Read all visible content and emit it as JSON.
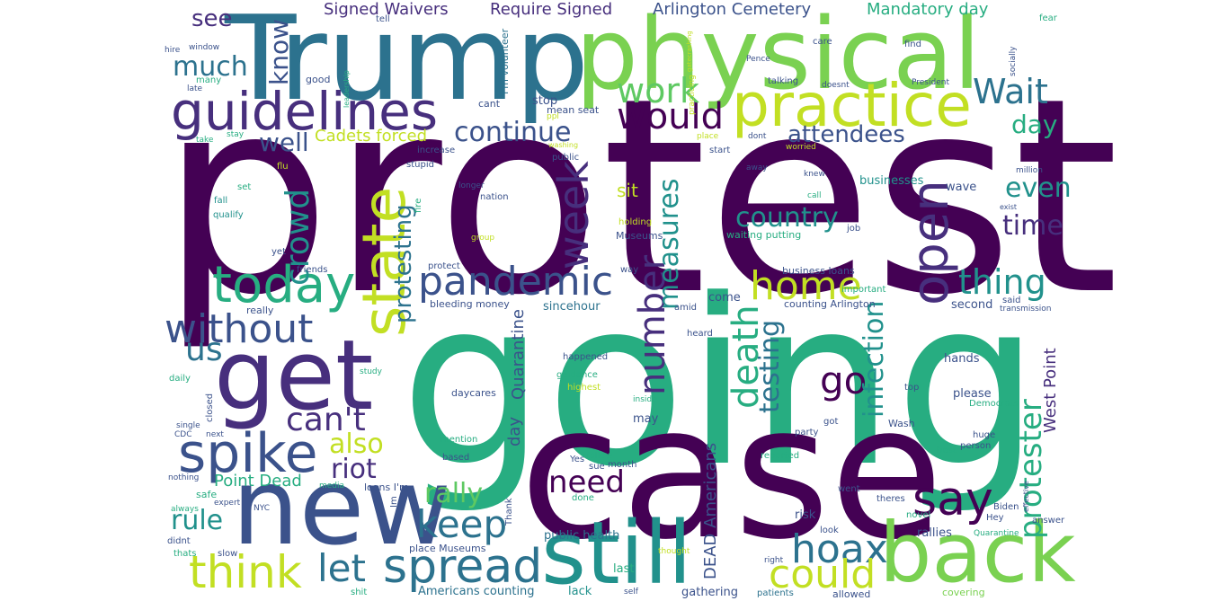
{
  "palette": {
    "dark_purple": "#440154",
    "indigo": "#472f7d",
    "slate_blue": "#3b528b",
    "steel_blue": "#2c728e",
    "teal": "#21918c",
    "sea_green": "#27ad81",
    "green": "#5ec962",
    "lime": "#7ad151",
    "yellow_green": "#c2df23",
    "yellow": "#fde725"
  },
  "words": {
    "protest": "protest",
    "going": "going",
    "case": "case",
    "trump": "Trump",
    "physical": "physical",
    "new": "new",
    "get": "get",
    "still": "still",
    "back": "back",
    "practice": "practice",
    "guidelines": "guidelines",
    "state": "state",
    "spread": "spread",
    "spike": "spike",
    "today": "today",
    "think": "think",
    "without": "without",
    "pandemic": "pandemic",
    "would": "would",
    "work": "work",
    "wait": "Wait",
    "week": "week",
    "open": "open",
    "say": "say",
    "hoax": "hoax",
    "could": "could",
    "let": "let",
    "keep": "keep",
    "home": "home",
    "thing": "thing",
    "number": "number",
    "measures": "measures",
    "death": "death",
    "go": "go",
    "protester": "protester",
    "cant": "can't",
    "crowd": "crowd",
    "infection": "infection",
    "us": "us",
    "rally": "rally",
    "need": "need",
    "riot": "riot",
    "testing": "testing",
    "continue": "continue",
    "country": "country",
    "much": "much",
    "know": "know",
    "time": "time",
    "even": "even",
    "rule": "rule",
    "also": "also",
    "well": "well",
    "attendees": "attendees",
    "protesting": "protesting",
    "day": "day",
    "see": "see",
    "mandatory_day": "Mandatory day",
    "arlington_cemetery": "Arlington Cemetery",
    "signed_waivers": "Signed Waivers",
    "require_signed": "Require Signed",
    "cadets_forced": "Cadets forced",
    "point_dead": "Point Dead",
    "west_point": "West Point",
    "quarantine_big": "Quarantine",
    "dead_americans": "DEAD Americans",
    "sit": "sit",
    "day_q": "day",
    "public_health": "public health",
    "americans_counting": "Americans counting",
    "place_museums": "place Museums",
    "business_loans": "business loans",
    "counting_arlington": "counting Arlington",
    "bleeding_money": "bleeding money",
    "loans_im": "loans I'm",
    "im_volunteer": "I'm volunteer",
    "waiting_putting": "waiting putting",
    "museums": "Museums",
    "hands": "hands",
    "please": "please",
    "second": "second",
    "risk": "risk",
    "last": "last",
    "may": "may",
    "sincehour": "sincehour",
    "come": "come",
    "wave": "wave",
    "businesses": "businesses",
    "stop": "stop",
    "mean_seat": "mean seat",
    "safe": "safe",
    "rallies": "rallies",
    "gathering": "gathering",
    "lack": "lack",
    "allowed": "allowed",
    "covering": "covering",
    "patients": "patients",
    "answer": "answer",
    "hey": "Hey",
    "biden": "Biden",
    "wash": "Wash",
    "huge": "huge",
    "person": "person",
    "best": "best",
    "theres": "theres",
    "novel": "novel",
    "look": "look",
    "went": "went",
    "party": "party",
    "got": "got",
    "top": "top",
    "democrats": "Democrats",
    "said": "said",
    "transmission": "transmission",
    "reported": "reported",
    "done": "done",
    "sue": "sue",
    "month": "month",
    "follow": "follow",
    "yes": "Yes",
    "mention": "mention",
    "based": "based",
    "daycares": "daycares",
    "guidance": "guidance",
    "happened": "happened",
    "highest": "highest",
    "inside": "inside",
    "heard": "heard",
    "amid": "amid",
    "important": "important",
    "job": "job",
    "way": "way",
    "holding": "holding",
    "group": "group",
    "protect": "protect",
    "friends": "friends",
    "yet": "yet",
    "fire": "fire",
    "nation": "nation",
    "longer": "longer",
    "stupid": "stupid",
    "increase": "increase",
    "public": "public",
    "start": "start",
    "place": "place",
    "washing": "washing",
    "ppl": "ppl",
    "cant_small": "cant",
    "good": "good",
    "many": "many",
    "late": "late",
    "window": "window",
    "hire": "hire",
    "leadership": "leadership",
    "tell": "tell",
    "gatecrash": "gatecrashing",
    "care": "care",
    "find": "find",
    "fear": "fear",
    "socially": "socially",
    "pence": "Pence",
    "talking": "talking",
    "doesnt": "doesnt",
    "president": "President",
    "practicing": "practicing",
    "dont": "dont",
    "worried": "worried",
    "away": "away",
    "knew": "knew",
    "call": "call",
    "million": "million",
    "exist": "exist",
    "take": "take",
    "stay": "stay",
    "flu": "flu",
    "set": "set",
    "fall": "fall",
    "qualify": "qualify",
    "really": "really",
    "daily": "daily",
    "study": "study",
    "closed": "closed",
    "single": "single",
    "cdc": "CDC",
    "next": "next",
    "nothing": "nothing",
    "expert": "expert",
    "always": "always",
    "didnt": "didnt",
    "thats": "thats",
    "slow": "slow",
    "nyc": "NYC",
    "im": "Im",
    "media": "media",
    "thank": "Thank",
    "shit": "shit",
    "self": "self",
    "thought": "thought",
    "right": "right",
    "effective": "effective",
    "quarantine_small": "Quarantine",
    "mean": "mean"
  }
}
